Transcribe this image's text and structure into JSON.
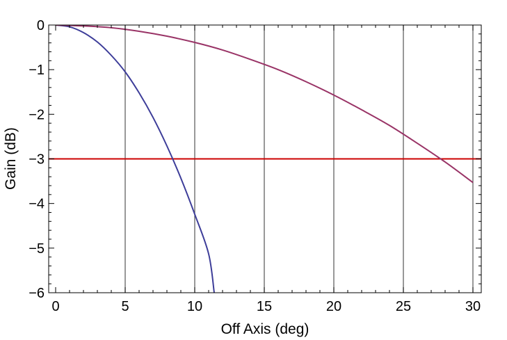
{
  "chart_data": {
    "type": "line",
    "title": "",
    "xlabel": "Off Axis (deg)",
    "ylabel": "Gain (dB)",
    "xlim": [
      -0.5,
      30.6
    ],
    "ylim": [
      -6,
      0
    ],
    "xticks": [
      0,
      5,
      10,
      15,
      20,
      25,
      30
    ],
    "xtick_labels": [
      "0",
      "5",
      "10",
      "15",
      "20",
      "25",
      "30"
    ],
    "yticks": [
      0,
      -1,
      -2,
      -3,
      -4,
      -5,
      -6
    ],
    "ytick_labels": [
      "0",
      "−1",
      "−2",
      "−3",
      "−4",
      "−5",
      "−6"
    ],
    "grid": "vertical lines at x = 5, 10, 15, 20, 25, 30",
    "legend": "none",
    "series": [
      {
        "color": "#3d3d99",
        "x": [
          0,
          1,
          2,
          3,
          4,
          5,
          6,
          7,
          8,
          9,
          10,
          11,
          11.4
        ],
        "y": [
          0,
          -0.04,
          -0.17,
          -0.38,
          -0.68,
          -1.05,
          -1.52,
          -2.07,
          -2.71,
          -3.43,
          -4.24,
          -5.13,
          -6.0
        ]
      },
      {
        "color": "#993366",
        "x": [
          0,
          2,
          4,
          6,
          8,
          10,
          12,
          14,
          16,
          18,
          20,
          22,
          24,
          26,
          28,
          30
        ],
        "y": [
          0,
          -0.02,
          -0.06,
          -0.14,
          -0.25,
          -0.39,
          -0.56,
          -0.77,
          -1.0,
          -1.27,
          -1.57,
          -1.9,
          -2.25,
          -2.65,
          -3.07,
          -3.53
        ]
      }
    ],
    "reference_lines": [
      {
        "y": -3,
        "color": "#cc0000"
      }
    ]
  }
}
